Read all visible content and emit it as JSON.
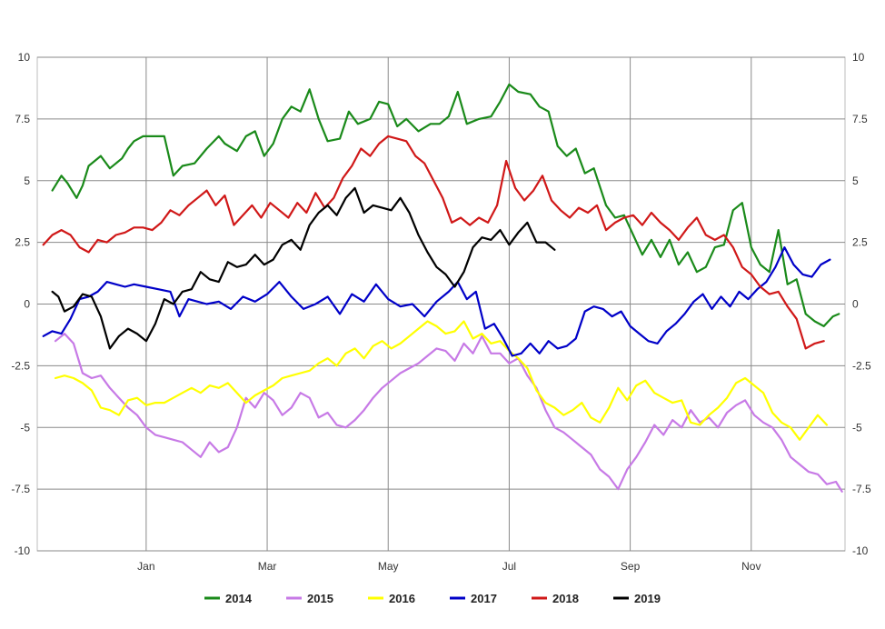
{
  "chart_data": {
    "type": "line",
    "title": "",
    "xlabel": "",
    "ylabel": "",
    "x_tick_labels": [
      "Jan",
      "Mar",
      "May",
      "Jul",
      "Sep",
      "Nov"
    ],
    "x_tick_month_index": [
      0,
      2,
      4,
      6,
      8,
      10
    ],
    "x_range_months": [
      -1.8,
      11.55
    ],
    "ylim": [
      -10,
      10
    ],
    "y_ticks": [
      10,
      7.5,
      5,
      2.5,
      0,
      -2.5,
      -5,
      -7.5,
      -10
    ],
    "y_tick_labels": [
      "10",
      "7.5",
      "5",
      "2.5",
      "0",
      "-2.5",
      "-5",
      "-7.5",
      "-10"
    ],
    "grid": true,
    "legend_position": "bottom",
    "series": [
      {
        "name": "2014",
        "color": "#1a8a1a",
        "x": [
          -1.55,
          -1.4,
          -1.3,
          -1.15,
          -1.05,
          -0.95,
          -0.75,
          -0.6,
          -0.4,
          -0.3,
          -0.2,
          -0.05,
          0.1,
          0.3,
          0.45,
          0.6,
          0.8,
          1.0,
          1.2,
          1.3,
          1.5,
          1.65,
          1.8,
          1.95,
          2.1,
          2.25,
          2.4,
          2.55,
          2.7,
          2.85,
          3.0,
          3.2,
          3.35,
          3.5,
          3.7,
          3.85,
          4.0,
          4.15,
          4.3,
          4.5,
          4.7,
          4.85,
          5.0,
          5.15,
          5.3,
          5.5,
          5.7,
          5.85,
          6.0,
          6.15,
          6.35,
          6.5,
          6.65,
          6.8,
          6.95,
          7.1,
          7.25,
          7.4,
          7.6,
          7.75,
          7.9,
          8.05,
          8.2,
          8.35,
          8.5,
          8.65,
          8.8,
          8.95,
          9.1,
          9.25,
          9.4,
          9.55,
          9.7,
          9.85,
          10.0,
          10.15,
          10.3,
          10.45,
          10.6,
          10.75,
          10.9,
          11.05,
          11.2,
          11.35,
          11.45
        ],
        "y": [
          4.6,
          5.2,
          4.9,
          4.3,
          4.8,
          5.6,
          6.0,
          5.5,
          5.9,
          6.3,
          6.6,
          6.8,
          6.8,
          6.8,
          5.2,
          5.6,
          5.7,
          6.3,
          6.8,
          6.5,
          6.2,
          6.8,
          7.0,
          6.0,
          6.5,
          7.5,
          8.0,
          7.8,
          8.7,
          7.5,
          6.6,
          6.7,
          7.8,
          7.3,
          7.5,
          8.2,
          8.1,
          7.2,
          7.5,
          7.0,
          7.3,
          7.3,
          7.6,
          8.6,
          7.3,
          7.5,
          7.6,
          8.2,
          8.9,
          8.6,
          8.5,
          8.0,
          7.8,
          6.4,
          6.0,
          6.3,
          5.3,
          5.5,
          4.0,
          3.5,
          3.6,
          2.8,
          2.0,
          2.6,
          1.9,
          2.6,
          1.6,
          2.1,
          1.3,
          1.5,
          2.3,
          2.4,
          3.8,
          4.1,
          2.3,
          1.6,
          1.3,
          3.0,
          0.8,
          1.0,
          -0.4,
          -0.7,
          -0.9,
          -0.5,
          -0.4
        ]
      },
      {
        "name": "2015",
        "color": "#c77ae6",
        "x": [
          -1.5,
          -1.35,
          -1.2,
          -1.05,
          -0.9,
          -0.75,
          -0.6,
          -0.45,
          -0.3,
          -0.15,
          0.0,
          0.15,
          0.3,
          0.45,
          0.6,
          0.75,
          0.9,
          1.05,
          1.2,
          1.35,
          1.5,
          1.65,
          1.8,
          1.95,
          2.1,
          2.25,
          2.4,
          2.55,
          2.7,
          2.85,
          3.0,
          3.15,
          3.3,
          3.45,
          3.6,
          3.75,
          3.9,
          4.05,
          4.2,
          4.35,
          4.5,
          4.65,
          4.8,
          4.95,
          5.1,
          5.25,
          5.4,
          5.55,
          5.7,
          5.85,
          6.0,
          6.15,
          6.3,
          6.45,
          6.6,
          6.75,
          6.9,
          7.05,
          7.2,
          7.35,
          7.5,
          7.65,
          7.8,
          7.95,
          8.1,
          8.25,
          8.4,
          8.55,
          8.7,
          8.85,
          9.0,
          9.15,
          9.3,
          9.45,
          9.6,
          9.75,
          9.9,
          10.05,
          10.2,
          10.35,
          10.5,
          10.65,
          10.8,
          10.95,
          11.1,
          11.25,
          11.4,
          11.5
        ],
        "y": [
          -1.5,
          -1.2,
          -1.6,
          -2.8,
          -3.0,
          -2.9,
          -3.4,
          -3.8,
          -4.2,
          -4.5,
          -5.0,
          -5.3,
          -5.4,
          -5.5,
          -5.6,
          -5.9,
          -6.2,
          -5.6,
          -6.0,
          -5.8,
          -5.0,
          -3.8,
          -4.2,
          -3.6,
          -3.9,
          -4.5,
          -4.2,
          -3.6,
          -3.8,
          -4.6,
          -4.4,
          -4.9,
          -5.0,
          -4.7,
          -4.3,
          -3.8,
          -3.4,
          -3.1,
          -2.8,
          -2.6,
          -2.4,
          -2.1,
          -1.8,
          -1.9,
          -2.3,
          -1.6,
          -2.0,
          -1.3,
          -2.0,
          -2.0,
          -2.4,
          -2.2,
          -2.9,
          -3.4,
          -4.3,
          -5.0,
          -5.2,
          -5.5,
          -5.8,
          -6.1,
          -6.7,
          -7.0,
          -7.5,
          -6.7,
          -6.2,
          -5.6,
          -4.9,
          -5.3,
          -4.7,
          -5.0,
          -4.3,
          -4.8,
          -4.6,
          -5.0,
          -4.4,
          -4.1,
          -3.9,
          -4.5,
          -4.8,
          -5.0,
          -5.5,
          -6.2,
          -6.5,
          -6.8,
          -6.9,
          -7.3,
          -7.2,
          -7.6
        ]
      },
      {
        "name": "2016",
        "color": "#ffff00",
        "x": [
          -1.5,
          -1.35,
          -1.2,
          -1.05,
          -0.9,
          -0.75,
          -0.6,
          -0.45,
          -0.3,
          -0.15,
          0.0,
          0.15,
          0.3,
          0.45,
          0.6,
          0.75,
          0.9,
          1.05,
          1.2,
          1.35,
          1.5,
          1.65,
          1.8,
          1.95,
          2.1,
          2.25,
          2.4,
          2.55,
          2.7,
          2.85,
          3.0,
          3.15,
          3.3,
          3.45,
          3.6,
          3.75,
          3.9,
          4.05,
          4.2,
          4.35,
          4.5,
          4.65,
          4.8,
          4.95,
          5.1,
          5.25,
          5.4,
          5.55,
          5.7,
          5.85,
          6.0,
          6.15,
          6.3,
          6.45,
          6.6,
          6.75,
          6.9,
          7.05,
          7.2,
          7.35,
          7.5,
          7.65,
          7.8,
          7.95,
          8.1,
          8.25,
          8.4,
          8.55,
          8.7,
          8.85,
          9.0,
          9.15,
          9.3,
          9.45,
          9.6,
          9.75,
          9.9,
          10.05,
          10.2,
          10.35,
          10.5,
          10.65,
          10.8,
          10.95,
          11.1,
          11.25
        ],
        "y": [
          -3.0,
          -2.9,
          -3.0,
          -3.2,
          -3.5,
          -4.2,
          -4.3,
          -4.5,
          -3.9,
          -3.8,
          -4.1,
          -4.0,
          -4.0,
          -3.8,
          -3.6,
          -3.4,
          -3.6,
          -3.3,
          -3.4,
          -3.2,
          -3.6,
          -4.0,
          -3.7,
          -3.5,
          -3.3,
          -3.0,
          -2.9,
          -2.8,
          -2.7,
          -2.4,
          -2.2,
          -2.5,
          -2.0,
          -1.8,
          -2.2,
          -1.7,
          -1.5,
          -1.8,
          -1.6,
          -1.3,
          -1.0,
          -0.7,
          -0.9,
          -1.2,
          -1.1,
          -0.7,
          -1.4,
          -1.2,
          -1.6,
          -1.5,
          -1.9,
          -2.2,
          -2.6,
          -3.5,
          -4.0,
          -4.2,
          -4.5,
          -4.3,
          -4.0,
          -4.6,
          -4.8,
          -4.2,
          -3.4,
          -3.9,
          -3.3,
          -3.1,
          -3.6,
          -3.8,
          -4.0,
          -3.9,
          -4.8,
          -4.9,
          -4.5,
          -4.2,
          -3.8,
          -3.2,
          -3.0,
          -3.3,
          -3.6,
          -4.4,
          -4.8,
          -5.0,
          -5.5,
          -5.0,
          -4.5,
          -4.9
        ]
      },
      {
        "name": "2017",
        "color": "#0000c8",
        "x": [
          -1.7,
          -1.55,
          -1.4,
          -1.25,
          -1.1,
          -0.95,
          -0.8,
          -0.65,
          -0.5,
          -0.35,
          -0.2,
          0.0,
          0.2,
          0.4,
          0.55,
          0.7,
          0.85,
          1.0,
          1.2,
          1.4,
          1.6,
          1.8,
          2.0,
          2.2,
          2.4,
          2.6,
          2.8,
          3.0,
          3.2,
          3.4,
          3.6,
          3.8,
          4.0,
          4.2,
          4.4,
          4.6,
          4.8,
          5.0,
          5.15,
          5.3,
          5.45,
          5.6,
          5.75,
          5.9,
          6.05,
          6.2,
          6.35,
          6.5,
          6.65,
          6.8,
          6.95,
          7.1,
          7.25,
          7.4,
          7.55,
          7.7,
          7.85,
          8.0,
          8.15,
          8.3,
          8.45,
          8.6,
          8.75,
          8.9,
          9.05,
          9.2,
          9.35,
          9.5,
          9.65,
          9.8,
          9.95,
          10.1,
          10.25,
          10.4,
          10.55,
          10.7,
          10.85,
          11.0,
          11.15,
          11.3
        ],
        "y": [
          -1.3,
          -1.1,
          -1.2,
          -0.6,
          0.2,
          0.3,
          0.5,
          0.9,
          0.8,
          0.7,
          0.8,
          0.7,
          0.6,
          0.5,
          -0.5,
          0.2,
          0.1,
          0.0,
          0.1,
          -0.2,
          0.3,
          0.1,
          0.4,
          0.9,
          0.3,
          -0.2,
          0.0,
          0.3,
          -0.4,
          0.4,
          0.1,
          0.8,
          0.2,
          -0.1,
          0.0,
          -0.5,
          0.1,
          0.5,
          0.9,
          0.2,
          0.5,
          -1.0,
          -0.8,
          -1.4,
          -2.1,
          -2.0,
          -1.6,
          -2.0,
          -1.5,
          -1.8,
          -1.7,
          -1.4,
          -0.3,
          -0.1,
          -0.2,
          -0.5,
          -0.3,
          -0.9,
          -1.2,
          -1.5,
          -1.6,
          -1.1,
          -0.8,
          -0.4,
          0.1,
          0.4,
          -0.2,
          0.3,
          -0.1,
          0.5,
          0.2,
          0.6,
          0.9,
          1.5,
          2.3,
          1.6,
          1.2,
          1.1,
          1.6,
          1.8
        ]
      },
      {
        "name": "2018",
        "color": "#d01818",
        "x": [
          -1.7,
          -1.55,
          -1.4,
          -1.25,
          -1.1,
          -0.95,
          -0.8,
          -0.65,
          -0.5,
          -0.35,
          -0.2,
          -0.05,
          0.1,
          0.25,
          0.4,
          0.55,
          0.7,
          0.85,
          1.0,
          1.15,
          1.3,
          1.45,
          1.6,
          1.75,
          1.9,
          2.05,
          2.2,
          2.35,
          2.5,
          2.65,
          2.8,
          2.95,
          3.1,
          3.25,
          3.4,
          3.55,
          3.7,
          3.85,
          4.0,
          4.15,
          4.3,
          4.45,
          4.6,
          4.75,
          4.9,
          5.05,
          5.2,
          5.35,
          5.5,
          5.65,
          5.8,
          5.95,
          6.1,
          6.25,
          6.4,
          6.55,
          6.7,
          6.85,
          7.0,
          7.15,
          7.3,
          7.45,
          7.6,
          7.75,
          7.9,
          8.05,
          8.2,
          8.35,
          8.5,
          8.65,
          8.8,
          8.95,
          9.1,
          9.25,
          9.4,
          9.55,
          9.7,
          9.85,
          10.0,
          10.15,
          10.3,
          10.45,
          10.6,
          10.75,
          10.9,
          11.05,
          11.2
        ],
        "y": [
          2.4,
          2.8,
          3.0,
          2.8,
          2.3,
          2.1,
          2.6,
          2.5,
          2.8,
          2.9,
          3.1,
          3.1,
          3.0,
          3.3,
          3.8,
          3.6,
          4.0,
          4.3,
          4.6,
          4.0,
          4.4,
          3.2,
          3.6,
          4.0,
          3.5,
          4.1,
          3.8,
          3.5,
          4.1,
          3.7,
          4.5,
          3.9,
          4.3,
          5.1,
          5.6,
          6.3,
          6.0,
          6.5,
          6.8,
          6.7,
          6.6,
          6.0,
          5.7,
          5.0,
          4.3,
          3.3,
          3.5,
          3.2,
          3.5,
          3.3,
          4.0,
          5.8,
          4.7,
          4.2,
          4.6,
          5.2,
          4.2,
          3.8,
          3.5,
          3.9,
          3.7,
          4.0,
          3.0,
          3.3,
          3.5,
          3.6,
          3.2,
          3.7,
          3.3,
          3.0,
          2.6,
          3.1,
          3.5,
          2.8,
          2.6,
          2.8,
          2.3,
          1.5,
          1.2,
          0.7,
          0.4,
          0.5,
          -0.1,
          -0.6,
          -1.8,
          -1.6,
          -1.5
        ]
      },
      {
        "name": "2019",
        "color": "#000000",
        "x": [
          -1.55,
          -1.45,
          -1.35,
          -1.2,
          -1.05,
          -0.9,
          -0.75,
          -0.6,
          -0.45,
          -0.3,
          -0.15,
          0.0,
          0.15,
          0.3,
          0.45,
          0.6,
          0.75,
          0.9,
          1.05,
          1.2,
          1.35,
          1.5,
          1.65,
          1.8,
          1.95,
          2.1,
          2.25,
          2.4,
          2.55,
          2.7,
          2.85,
          3.0,
          3.15,
          3.3,
          3.45,
          3.6,
          3.75,
          3.9,
          4.05,
          4.2,
          4.35,
          4.5,
          4.65,
          4.8,
          4.95,
          5.1,
          5.25,
          5.4,
          5.55,
          5.7,
          5.85,
          6.0,
          6.15,
          6.3,
          6.45,
          6.6,
          6.75
        ],
        "y": [
          0.5,
          0.3,
          -0.3,
          -0.1,
          0.4,
          0.3,
          -0.5,
          -1.8,
          -1.3,
          -1.0,
          -1.2,
          -1.5,
          -0.8,
          0.2,
          0.0,
          0.5,
          0.6,
          1.3,
          1.0,
          0.9,
          1.7,
          1.5,
          1.6,
          2.0,
          1.6,
          1.8,
          2.4,
          2.6,
          2.2,
          3.2,
          3.7,
          4.0,
          3.6,
          4.3,
          4.7,
          3.7,
          4.0,
          3.9,
          3.8,
          4.3,
          3.7,
          2.8,
          2.1,
          1.5,
          1.2,
          0.7,
          1.3,
          2.3,
          2.7,
          2.6,
          3.0,
          2.4,
          2.9,
          3.3,
          2.5,
          2.5,
          2.2
        ]
      }
    ]
  }
}
